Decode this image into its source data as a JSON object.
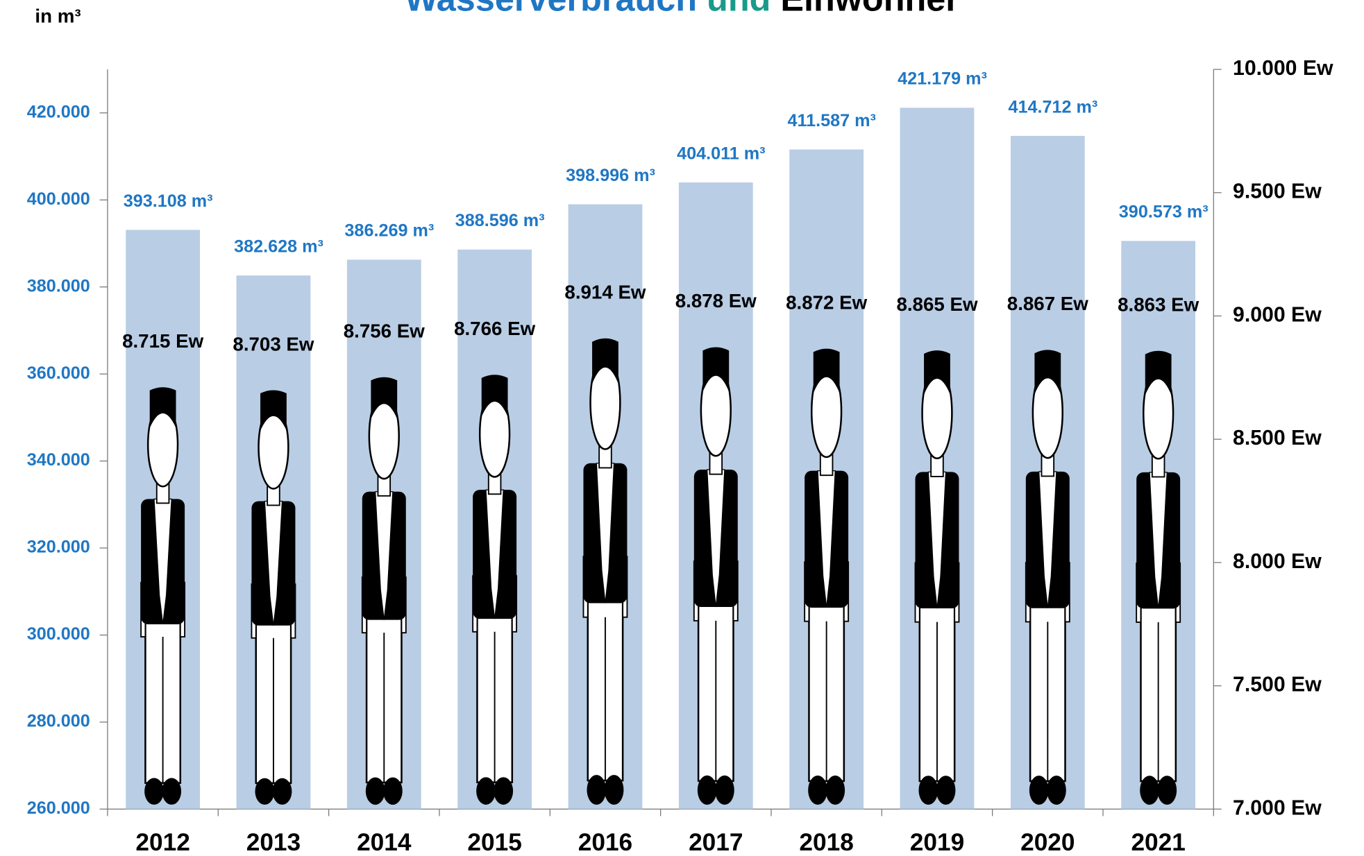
{
  "chart_data": {
    "type": "bar",
    "title_segments": [
      {
        "text": "Wasserverbrauch",
        "color": "#1f77c4"
      },
      {
        "text": "und",
        "color": "#1a9a8a"
      },
      {
        "text": "Einwohner",
        "color": "#000000"
      }
    ],
    "y_axis_label": "in m³",
    "categories": [
      "2012",
      "2013",
      "2014",
      "2015",
      "2016",
      "2017",
      "2018",
      "2019",
      "2020",
      "2021"
    ],
    "series": [
      {
        "name": "Wasserverbrauch",
        "color": "#b9cde5",
        "label_color": "#1f77c4",
        "values": [
          393108,
          382628,
          386269,
          388596,
          398996,
          404011,
          411587,
          421179,
          414712,
          390573
        ],
        "value_labels": [
          "393.108 m³",
          "382.628 m³",
          "386.269 m³",
          "388.596 m³",
          "398.996 m³",
          "404.011 m³",
          "411.587 m³",
          "421.179 m³",
          "414.712 m³",
          "390.573 m³"
        ]
      },
      {
        "name": "Einwohner",
        "color": "#000000",
        "axis": "y2",
        "values": [
          8715,
          8703,
          8756,
          8766,
          8914,
          8878,
          8872,
          8865,
          8867,
          8863
        ],
        "value_labels": [
          "8.715 Ew",
          "8.703 Ew",
          "8.756 Ew",
          "8.766 Ew",
          "8.914 Ew",
          "8.878 Ew",
          "8.872 Ew",
          "8.865 Ew",
          "8.867 Ew",
          "8.863 Ew"
        ]
      }
    ],
    "ylim": [
      260000,
      430000
    ],
    "yticks": [
      {
        "value": 260000,
        "label": "260.000"
      },
      {
        "value": 280000,
        "label": "280.000"
      },
      {
        "value": 300000,
        "label": "300.000"
      },
      {
        "value": 320000,
        "label": "320.000"
      },
      {
        "value": 340000,
        "label": "340.000"
      },
      {
        "value": 360000,
        "label": "360.000"
      },
      {
        "value": 380000,
        "label": "380.000"
      },
      {
        "value": 400000,
        "label": "400.000"
      },
      {
        "value": 420000,
        "label": "420.000"
      }
    ],
    "y2lim": [
      7000,
      10000
    ],
    "y2ticks": [
      {
        "value": 7000,
        "label": "7.000 Ew"
      },
      {
        "value": 7500,
        "label": "7.500 Ew"
      },
      {
        "value": 8000,
        "label": "8.000 Ew"
      },
      {
        "value": 8500,
        "label": "8.500 Ew"
      },
      {
        "value": 9000,
        "label": "9.000 Ew"
      },
      {
        "value": 9500,
        "label": "9.500 Ew"
      },
      {
        "value": 10000,
        "label": "10.000 Ew"
      }
    ],
    "grid": false
  }
}
